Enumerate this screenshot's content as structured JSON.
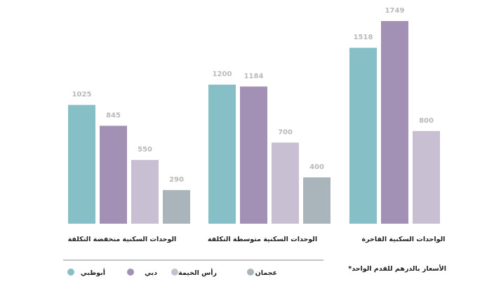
{
  "chart_data": {
    "type": "bar",
    "categories": [
      "الوحدات السكنية منخفضة التكلفة",
      "الوحدات السكنية متوسطة التكلفة",
      "الواحدات السكنية الفاخرة"
    ],
    "series": [
      {
        "name": "أبوظبي",
        "color": "#87bfc7",
        "values": [
          1025,
          1200,
          1518
        ]
      },
      {
        "name": "دبي",
        "color": "#a391b5",
        "values": [
          845,
          1184,
          1749
        ]
      },
      {
        "name": "رأس الخيمة",
        "color": "#c9bfd3",
        "values": [
          550,
          700,
          800
        ]
      },
      {
        "name": "عجمان",
        "color": "#aab4bb",
        "values": [
          290,
          400,
          null
        ]
      }
    ],
    "ylim": [
      0,
      1800
    ],
    "value_label_color": "#b9b9b9",
    "note": "*الأسعار بالدرهم للقدم الواحد"
  }
}
